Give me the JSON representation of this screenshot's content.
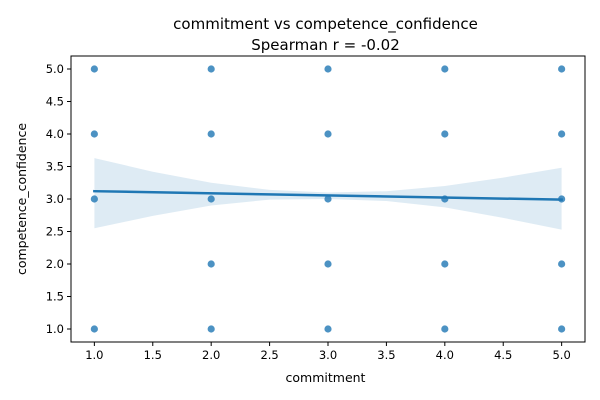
{
  "chart_data": {
    "type": "scatter",
    "title": "commitment vs competence_confidence",
    "subtitle": "Spearman r = -0.02",
    "xlabel": "commitment",
    "ylabel": "competence_confidence",
    "xlim": [
      0.8,
      5.2
    ],
    "ylim": [
      0.8,
      5.2
    ],
    "x_ticks": [
      "1.0",
      "1.5",
      "2.0",
      "2.5",
      "3.0",
      "3.5",
      "4.0",
      "4.5",
      "5.0"
    ],
    "y_ticks": [
      "1.0",
      "1.5",
      "2.0",
      "2.5",
      "3.0",
      "3.5",
      "4.0",
      "4.5",
      "5.0"
    ],
    "grid": false,
    "points": [
      {
        "x": 1,
        "y": 5
      },
      {
        "x": 1,
        "y": 4
      },
      {
        "x": 1,
        "y": 3
      },
      {
        "x": 1,
        "y": 1
      },
      {
        "x": 2,
        "y": 5
      },
      {
        "x": 2,
        "y": 4
      },
      {
        "x": 2,
        "y": 3
      },
      {
        "x": 2,
        "y": 2
      },
      {
        "x": 2,
        "y": 1
      },
      {
        "x": 3,
        "y": 5
      },
      {
        "x": 3,
        "y": 4
      },
      {
        "x": 3,
        "y": 3
      },
      {
        "x": 3,
        "y": 2
      },
      {
        "x": 3,
        "y": 1
      },
      {
        "x": 4,
        "y": 5
      },
      {
        "x": 4,
        "y": 4
      },
      {
        "x": 4,
        "y": 3
      },
      {
        "x": 4,
        "y": 2
      },
      {
        "x": 4,
        "y": 1
      },
      {
        "x": 5,
        "y": 5
      },
      {
        "x": 5,
        "y": 4
      },
      {
        "x": 5,
        "y": 3
      },
      {
        "x": 5,
        "y": 2
      },
      {
        "x": 5,
        "y": 1
      }
    ],
    "regression_line": {
      "x": [
        1,
        5
      ],
      "y": [
        3.12,
        2.99
      ]
    },
    "confidence_band": {
      "x": [
        1,
        1.5,
        2,
        2.5,
        3,
        3.5,
        4,
        4.5,
        5
      ],
      "upper": [
        3.63,
        3.42,
        3.25,
        3.14,
        3.1,
        3.12,
        3.2,
        3.33,
        3.48
      ],
      "lower": [
        2.55,
        2.74,
        2.9,
        2.99,
        3.0,
        2.97,
        2.87,
        2.71,
        2.53
      ]
    },
    "colors": {
      "point": "#1f77b4",
      "line": "#1f77b4",
      "band": "#1f77b4",
      "axis": "#000000"
    }
  }
}
